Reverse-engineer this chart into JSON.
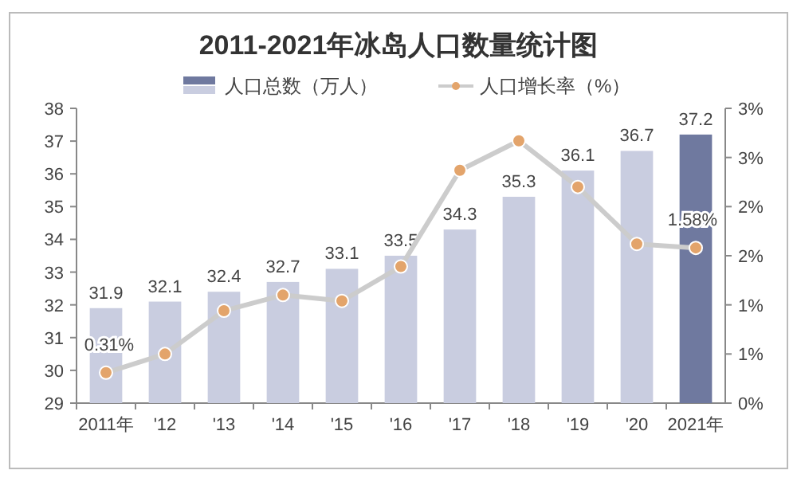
{
  "chart_data": {
    "type": "bar",
    "title": "2011-2021年冰岛人口数量统计图",
    "categories": [
      "2011年",
      "'12",
      "'13",
      "'14",
      "'15",
      "'16",
      "'17",
      "'18",
      "'19",
      "'20",
      "2021年"
    ],
    "series": [
      {
        "name": "人口总数（万人）",
        "colors": [
          "#c9cde0",
          "#c9cde0",
          "#c9cde0",
          "#c9cde0",
          "#c9cde0",
          "#c9cde0",
          "#c9cde0",
          "#c9cde0",
          "#c9cde0",
          "#c9cde0",
          "#6f799f"
        ],
        "values": [
          31.9,
          32.1,
          32.4,
          32.7,
          33.1,
          33.5,
          34.3,
          35.3,
          36.1,
          36.7,
          37.2
        ],
        "data_labels": true
      },
      {
        "name": "人口增长率（%）",
        "type": "line",
        "axis": "y2",
        "color": "#cccccc",
        "marker": "circle",
        "values": [
          0.31,
          0.5,
          0.94,
          1.1,
          1.04,
          1.39,
          2.37,
          2.67,
          2.2,
          1.62,
          1.58
        ],
        "value_labels": [
          "0.31%",
          null,
          null,
          null,
          null,
          null,
          null,
          null,
          null,
          null,
          "1.58%"
        ]
      }
    ],
    "ylim": [
      29,
      38
    ],
    "yticks": [
      29,
      30,
      31,
      32,
      33,
      34,
      35,
      36,
      37,
      38
    ],
    "y2lim": [
      0,
      3
    ],
    "y2ticks": [
      {
        "value": 0,
        "label": "0%"
      },
      {
        "value": 0.5,
        "label": "1%"
      },
      {
        "value": 1,
        "label": "1%"
      },
      {
        "value": 1.5,
        "label": "2%"
      },
      {
        "value": 2,
        "label": "2%"
      },
      {
        "value": 2.5,
        "label": "3%"
      },
      {
        "value": 3,
        "label": "3%"
      }
    ],
    "legend": "top",
    "grid": false
  }
}
